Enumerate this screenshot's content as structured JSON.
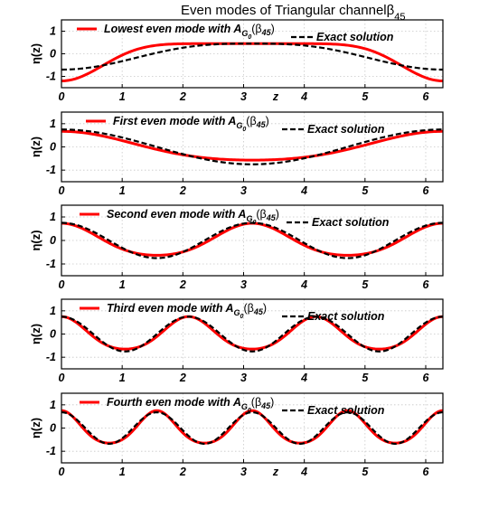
{
  "title": {
    "text": "Even modes of Triangular channel",
    "symbol": "β",
    "subscript": "45"
  },
  "chart_data": [
    {
      "type": "line",
      "xlabel": "z",
      "ylabel": "η(z)",
      "xlim": [
        0,
        6.283
      ],
      "ylim": [
        -1.5,
        1.5
      ],
      "xticks": [
        "0",
        "1",
        "2",
        "3",
        "4",
        "5",
        "6"
      ],
      "yticks": [
        "-1",
        "0",
        "1"
      ],
      "grid": true,
      "legend": {
        "placement": "top",
        "approx": {
          "pre": "Lowest even mode with ",
          "A": "A",
          "G": "G",
          "zero": "0",
          "beta": "(β",
          "sub": "45",
          "close": ")"
        },
        "exact": "Exact solution"
      },
      "series": [
        {
          "role": "approx",
          "color": "#ff0000",
          "style": "solid",
          "mode": 0,
          "amplitude": 0.45,
          "offset": -0.22
        },
        {
          "role": "exact",
          "color": "#000000",
          "style": "dashed",
          "mode": 0,
          "amplitude": 0.45,
          "offset": -0.22
        }
      ]
    },
    {
      "type": "line",
      "xlabel": "",
      "ylabel": "η(z)",
      "xlim": [
        0,
        6.283
      ],
      "ylim": [
        -1.5,
        1.5
      ],
      "xticks": [
        "0",
        "1",
        "2",
        "3",
        "4",
        "5",
        "6"
      ],
      "yticks": [
        "-1",
        "0",
        "1"
      ],
      "grid": true,
      "legend": {
        "placement": "top",
        "approx": {
          "pre": "First even mode with ",
          "A": "A",
          "G": "G",
          "zero": "0",
          "beta": "(β",
          "sub": "45",
          "close": ")"
        },
        "exact": "Exact solution"
      },
      "series": [
        {
          "role": "approx",
          "color": "#ff0000",
          "style": "solid",
          "mode": 1,
          "amplitude": 0.62,
          "phase": 0.18
        },
        {
          "role": "exact",
          "color": "#000000",
          "style": "dashed",
          "mode": 1,
          "amplitude": 0.75,
          "phase": 0.0
        }
      ]
    },
    {
      "type": "line",
      "xlabel": "",
      "ylabel": "η(z)",
      "xlim": [
        0,
        6.283
      ],
      "ylim": [
        -1.5,
        1.5
      ],
      "xticks": [
        "0",
        "1",
        "2",
        "3",
        "4",
        "5",
        "6"
      ],
      "yticks": [
        "-1",
        "0",
        "1"
      ],
      "grid": true,
      "legend": {
        "placement": "top",
        "approx": {
          "pre": "Second even mode with ",
          "A": "A",
          "G": "G",
          "zero": "0",
          "beta": "(β",
          "sub": "45",
          "close": ")"
        },
        "exact": "Exact solution"
      },
      "series": [
        {
          "role": "approx",
          "color": "#ff0000",
          "style": "solid",
          "mode": 2,
          "amplitude": 0.68,
          "phase": 0.1
        },
        {
          "role": "exact",
          "color": "#000000",
          "style": "dashed",
          "mode": 2,
          "amplitude": 0.75,
          "phase": 0.0
        }
      ]
    },
    {
      "type": "line",
      "xlabel": "",
      "ylabel": "η(z)",
      "xlim": [
        0,
        6.283
      ],
      "ylim": [
        -1.5,
        1.5
      ],
      "xticks": [
        "0",
        "1",
        "2",
        "3",
        "4",
        "5",
        "6"
      ],
      "yticks": [
        "-1",
        "0",
        "1"
      ],
      "grid": true,
      "legend": {
        "placement": "top",
        "approx": {
          "pre": "Third even mode with ",
          "A": "A",
          "G": "G",
          "zero": "0",
          "beta": "(β",
          "sub": "45",
          "close": ")"
        },
        "exact": "Exact solution"
      },
      "series": [
        {
          "role": "approx",
          "color": "#ff0000",
          "style": "solid",
          "mode": 3,
          "amplitude": 0.7,
          "phase": 0.05
        },
        {
          "role": "exact",
          "color": "#000000",
          "style": "dashed",
          "mode": 3,
          "amplitude": 0.75,
          "phase": 0.0
        }
      ]
    },
    {
      "type": "line",
      "xlabel": "z",
      "ylabel": "η(z)",
      "xlim": [
        0,
        6.283
      ],
      "ylim": [
        -1.5,
        1.5
      ],
      "xticks": [
        "0",
        "1",
        "2",
        "3",
        "4",
        "5",
        "6"
      ],
      "yticks": [
        "-1",
        "0",
        "1"
      ],
      "grid": true,
      "legend": {
        "placement": "top",
        "approx": {
          "pre": "Fourth even mode with ",
          "A": "A",
          "G": "G",
          "zero": "0",
          "beta": "(β",
          "sub": "45",
          "close": ")"
        },
        "exact": "Exact solution"
      },
      "series": [
        {
          "role": "approx",
          "color": "#ff0000",
          "style": "solid",
          "mode": 4,
          "amplitude": 0.7,
          "phase": 0.0
        },
        {
          "role": "exact",
          "color": "#000000",
          "style": "dashed",
          "mode": 4,
          "amplitude": 0.68,
          "phase": 0.0
        }
      ]
    }
  ]
}
